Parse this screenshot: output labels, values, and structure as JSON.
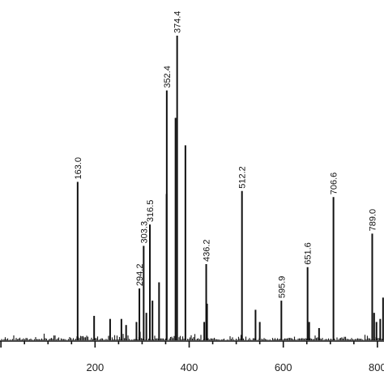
{
  "chart_data": {
    "type": "bar",
    "title": "",
    "xlabel": "",
    "ylabel": "",
    "xlim": [
      -2,
      814
    ],
    "ylim": [
      0,
      100
    ],
    "x_ticks": [
      200,
      400,
      600,
      800
    ],
    "labeled_peaks": [
      {
        "mz": 163.0,
        "label": "163.0",
        "intensity": 52
      },
      {
        "mz": 294.2,
        "label": "294.2",
        "intensity": 17
      },
      {
        "mz": 303.3,
        "label": "303.3",
        "intensity": 31
      },
      {
        "mz": 316.5,
        "label": "316.5",
        "intensity": 38
      },
      {
        "mz": 352.4,
        "label": "352.4",
        "intensity": 82
      },
      {
        "mz": 374.4,
        "label": "374.4",
        "intensity": 100
      },
      {
        "mz": 436.2,
        "label": "436.2",
        "intensity": 25
      },
      {
        "mz": 512.2,
        "label": "512.2",
        "intensity": 49
      },
      {
        "mz": 595.9,
        "label": "595.9",
        "intensity": 13
      },
      {
        "mz": 651.6,
        "label": "651.6",
        "intensity": 24
      },
      {
        "mz": 706.6,
        "label": "706.6",
        "intensity": 47
      },
      {
        "mz": 789.0,
        "label": "789.0",
        "intensity": 35
      }
    ],
    "unlabeled_peaks": [
      {
        "mz": 352.0,
        "intensity": 48
      },
      {
        "mz": 371.0,
        "intensity": 73
      },
      {
        "mz": 392.0,
        "intensity": 64
      },
      {
        "mz": 336.0,
        "intensity": 19
      },
      {
        "mz": 322.0,
        "intensity": 13
      },
      {
        "mz": 309.0,
        "intensity": 9
      },
      {
        "mz": 288.0,
        "intensity": 6
      },
      {
        "mz": 232.0,
        "intensity": 7
      },
      {
        "mz": 256.0,
        "intensity": 7
      },
      {
        "mz": 198.0,
        "intensity": 8
      },
      {
        "mz": 266.0,
        "intensity": 5
      },
      {
        "mz": 432.0,
        "intensity": 6
      },
      {
        "mz": 438.0,
        "intensity": 12
      },
      {
        "mz": 541.0,
        "intensity": 10
      },
      {
        "mz": 550.0,
        "intensity": 6
      },
      {
        "mz": 655.0,
        "intensity": 6
      },
      {
        "mz": 676.0,
        "intensity": 4
      },
      {
        "mz": 793.0,
        "intensity": 9
      },
      {
        "mz": 798.0,
        "intensity": 6
      },
      {
        "mz": 806.0,
        "intensity": 7
      },
      {
        "mz": 812.0,
        "intensity": 14
      }
    ]
  }
}
